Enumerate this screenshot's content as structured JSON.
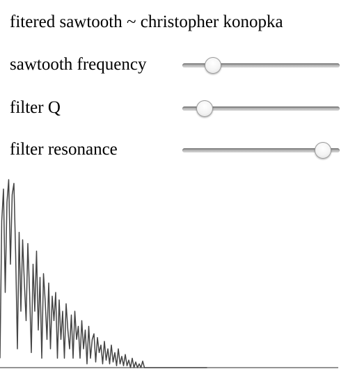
{
  "title": "fitered sawtooth ~ christopher konopka",
  "controls": [
    {
      "label": "sawtooth frequency",
      "value_fraction": 0.16
    },
    {
      "label": "filter Q",
      "value_fraction": 0.1
    },
    {
      "label": "filter resonance",
      "value_fraction": 0.94
    }
  ],
  "visualizer": {
    "stroke_color": "#444444",
    "baseline_color": "#555555",
    "magnitudes": [
      0.05,
      0.78,
      0.95,
      0.4,
      0.88,
      1.0,
      0.55,
      0.92,
      0.98,
      0.6,
      0.1,
      0.72,
      0.3,
      0.68,
      0.45,
      0.25,
      0.66,
      0.4,
      0.08,
      0.55,
      0.3,
      0.62,
      0.2,
      0.48,
      0.05,
      0.5,
      0.35,
      0.15,
      0.45,
      0.1,
      0.38,
      0.25,
      0.4,
      0.05,
      0.36,
      0.15,
      0.3,
      0.05,
      0.34,
      0.2,
      0.1,
      0.28,
      0.05,
      0.3,
      0.15,
      0.22,
      0.05,
      0.25,
      0.1,
      0.2,
      0.02,
      0.22,
      0.05,
      0.15,
      0.18,
      0.03,
      0.16,
      0.08,
      0.12,
      0.02,
      0.14,
      0.04,
      0.1,
      0.02,
      0.12,
      0.03,
      0.08,
      0.01,
      0.1,
      0.02,
      0.06,
      0.01,
      0.07,
      0.01,
      0.04,
      0.0,
      0.05,
      0.0,
      0.03,
      0.0,
      0.02,
      0.0,
      0.035,
      0.0,
      0.0,
      0.0,
      0.0,
      0.0,
      0.0,
      0.0,
      0.0,
      0.0,
      0.0,
      0.0,
      0.0,
      0.0,
      0.0,
      0.0,
      0.0,
      0.0,
      0.0,
      0.0,
      0.0,
      0.0,
      0.0,
      0.0,
      0.0,
      0.0,
      0.0,
      0.0,
      0.0,
      0.0,
      0.0,
      0.0,
      0.0,
      0.0,
      0.0,
      0.0,
      0.0,
      0.0
    ]
  }
}
